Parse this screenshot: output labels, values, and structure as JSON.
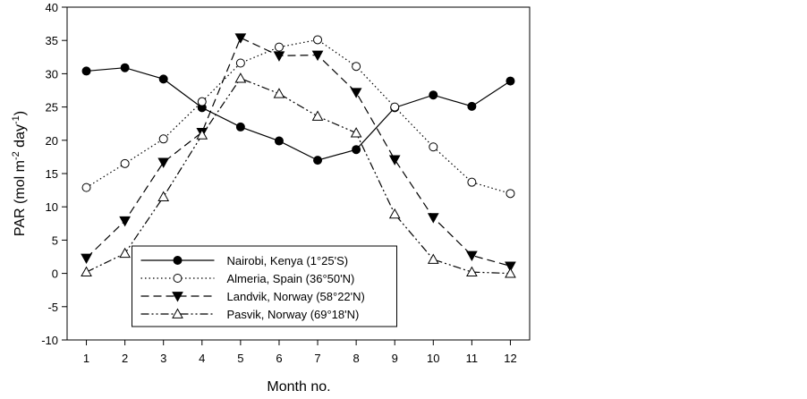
{
  "chart_data": {
    "type": "line",
    "xlabel": "Month no.",
    "ylabel_parts": [
      "PAR (mol m",
      "-2",
      " day",
      "-1",
      ")"
    ],
    "x": [
      1,
      2,
      3,
      4,
      5,
      6,
      7,
      8,
      9,
      10,
      11,
      12
    ],
    "xlim": [
      0.5,
      12.5
    ],
    "xticks": [
      1,
      2,
      3,
      4,
      5,
      6,
      7,
      8,
      9,
      10,
      11,
      12
    ],
    "ylim": [
      -10,
      40
    ],
    "yticks": [
      -10,
      -5,
      0,
      5,
      10,
      15,
      20,
      25,
      30,
      35,
      40
    ],
    "legend": "lower center",
    "series": [
      {
        "name": "Nairobi, Kenya (1°25'S)",
        "color": "#000000",
        "line_style": "solid",
        "marker": "filled-circle",
        "values": [
          30.4,
          30.9,
          29.2,
          24.9,
          22.0,
          19.9,
          17.0,
          18.6,
          24.9,
          26.8,
          25.1,
          28.9
        ]
      },
      {
        "name": "Almeria, Spain (36°50'N)",
        "color": "#000000",
        "line_style": "dotted",
        "marker": "open-circle",
        "values": [
          12.9,
          16.5,
          20.2,
          25.8,
          31.6,
          34.0,
          35.1,
          31.1,
          25.0,
          19.0,
          13.7,
          12.0
        ]
      },
      {
        "name": "Landvik, Norway (58°22'N)",
        "color": "#000000",
        "line_style": "dashed",
        "marker": "filled-triangle-down",
        "values": [
          2.3,
          7.9,
          16.7,
          21.2,
          35.4,
          32.7,
          32.8,
          27.2,
          17.1,
          8.4,
          2.7,
          1.1
        ]
      },
      {
        "name": "Pasvik, Norway (69°18'N)",
        "color": "#000000",
        "line_style": "dashdot",
        "marker": "open-triangle-up",
        "values": [
          0.2,
          3.0,
          11.5,
          20.8,
          29.3,
          27.0,
          23.6,
          21.1,
          8.9,
          2.1,
          0.2,
          0.0
        ]
      }
    ]
  }
}
